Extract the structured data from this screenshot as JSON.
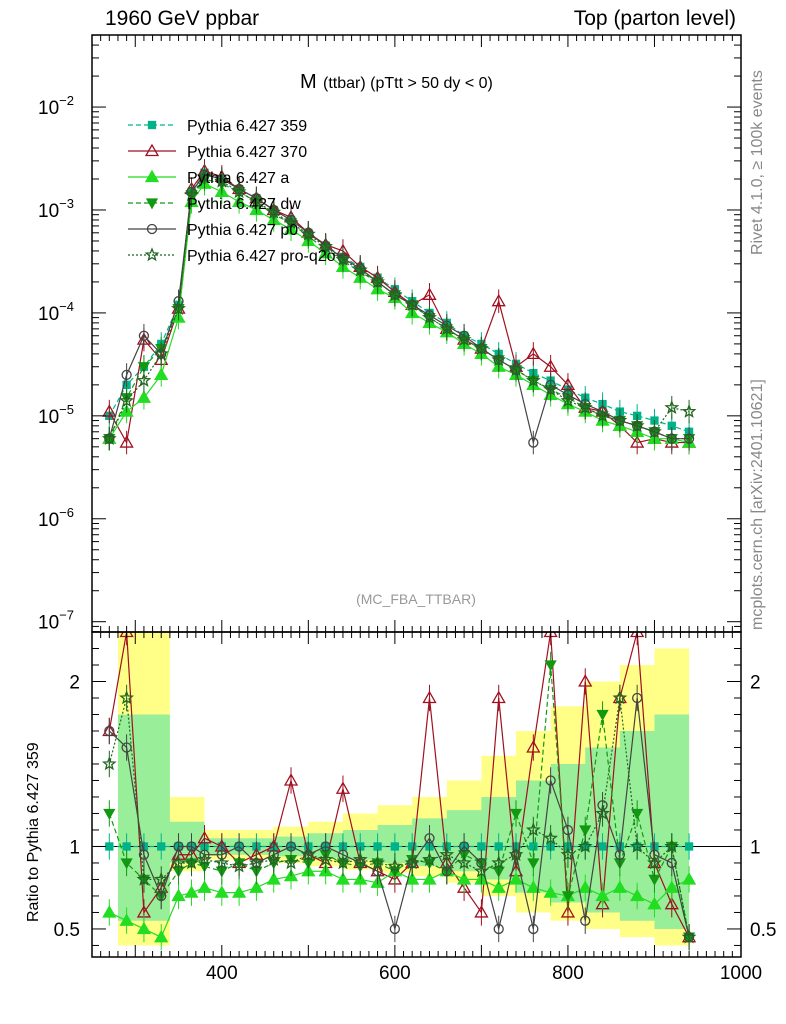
{
  "header": {
    "left": "1960 GeV ppbar",
    "right": "Top (parton level)"
  },
  "side_labels": {
    "rivet": "Rivet 4.1.0, ≥ 100k events",
    "mcplots": "mcplots.cern.ch [arXiv:2401.10621]"
  },
  "chart_data": {
    "type": "line",
    "title_main": "M",
    "title_sub": "(ttbar) (pTtt > 50 dy < 0)",
    "analysis_label": "(MC_FBA_TTBAR)",
    "ylabel_ratio": "Ratio to Pythia 6.427 359",
    "xlim": [
      250,
      1000
    ],
    "ylim_main_log": [
      -7.1,
      -1.3
    ],
    "ylim_ratio": [
      0.33,
      2.3
    ],
    "x_ticks": [
      {
        "v": 400,
        "label": "400"
      },
      {
        "v": 600,
        "label": "600"
      },
      {
        "v": 800,
        "label": "800"
      },
      {
        "v": 1000,
        "label": "1000"
      }
    ],
    "y_ticks_main": [
      {
        "e": -2,
        "label": "10",
        "sup": "−2"
      },
      {
        "e": -3,
        "label": "10",
        "sup": "−3"
      },
      {
        "e": -4,
        "label": "10",
        "sup": "−4"
      },
      {
        "e": -5,
        "label": "10",
        "sup": "−5"
      },
      {
        "e": -6,
        "label": "10",
        "sup": "−6"
      },
      {
        "e": -7,
        "label": "10",
        "sup": "−7"
      }
    ],
    "y_ticks_ratio": [
      {
        "v": 0.5,
        "label": "0.5"
      },
      {
        "v": 1,
        "label": "1"
      },
      {
        "v": 2,
        "label": "2"
      }
    ],
    "reference_band": {
      "x": [
        280,
        340,
        380,
        420,
        460,
        500,
        540,
        580,
        620,
        660,
        700,
        740,
        780,
        820,
        860,
        900,
        940
      ],
      "yellow_lo": [
        0.4,
        0.85,
        0.92,
        0.92,
        0.9,
        0.88,
        0.86,
        0.84,
        0.82,
        0.78,
        0.7,
        0.6,
        0.55,
        0.5,
        0.45,
        0.4,
        0.35
      ],
      "yellow_hi": [
        2.3,
        1.3,
        1.1,
        1.1,
        1.12,
        1.15,
        1.2,
        1.25,
        1.3,
        1.4,
        1.55,
        1.7,
        1.85,
        2.0,
        2.1,
        2.2,
        2.3
      ],
      "green_lo": [
        0.55,
        0.9,
        0.95,
        0.95,
        0.94,
        0.93,
        0.92,
        0.9,
        0.88,
        0.85,
        0.8,
        0.72,
        0.66,
        0.6,
        0.55,
        0.5,
        0.45
      ],
      "green_hi": [
        1.8,
        1.15,
        1.05,
        1.05,
        1.06,
        1.08,
        1.1,
        1.13,
        1.17,
        1.22,
        1.3,
        1.4,
        1.5,
        1.6,
        1.7,
        1.8,
        1.9
      ]
    },
    "series": [
      {
        "name": "Pythia 6.427 359",
        "color": "#00b38a",
        "marker": "square",
        "dash": "5,3",
        "filled": true,
        "x": [
          270,
          290,
          310,
          330,
          350,
          365,
          380,
          400,
          420,
          440,
          460,
          480,
          500,
          520,
          540,
          560,
          580,
          600,
          620,
          640,
          660,
          680,
          700,
          720,
          740,
          760,
          780,
          800,
          820,
          840,
          860,
          880,
          900,
          920,
          940
        ],
        "y": [
          1e-05,
          2e-05,
          3e-05,
          5e-05,
          0.00012,
          0.0015,
          0.0023,
          0.002,
          0.0016,
          0.0013,
          0.001,
          0.0008,
          0.0006,
          0.00045,
          0.00035,
          0.00028,
          0.00022,
          0.00017,
          0.00013,
          0.0001,
          8e-05,
          6e-05,
          5e-05,
          4e-05,
          3.2e-05,
          2.6e-05,
          2.2e-05,
          1.8e-05,
          1.5e-05,
          1.3e-05,
          1.1e-05,
          1e-05,
          9e-06,
          8e-06,
          7e-06
        ],
        "ratio": [
          1.0,
          1.0,
          1.0,
          1.0,
          1.0,
          1.0,
          1.0,
          1.0,
          1.0,
          1.0,
          1.0,
          1.0,
          1.0,
          1.0,
          1.0,
          1.0,
          1.0,
          1.0,
          1.0,
          1.0,
          1.0,
          1.0,
          1.0,
          1.0,
          1.0,
          1.0,
          1.0,
          1.0,
          1.0,
          1.0,
          1.0,
          1.0,
          1.0,
          1.0,
          1.0
        ]
      },
      {
        "name": "Pythia 6.427 370",
        "color": "#a01020",
        "marker": "triangle",
        "dash": "",
        "filled": false,
        "x": [
          270,
          290,
          310,
          330,
          350,
          365,
          380,
          400,
          420,
          440,
          460,
          480,
          500,
          520,
          540,
          560,
          580,
          600,
          620,
          640,
          660,
          680,
          700,
          720,
          740,
          760,
          780,
          800,
          820,
          840,
          860,
          880,
          900,
          920,
          940
        ],
        "y": [
          1.1e-05,
          5.5e-06,
          5.5e-05,
          3.5e-05,
          0.00011,
          0.0016,
          0.0024,
          0.0021,
          0.0016,
          0.0013,
          0.001,
          0.00085,
          0.0006,
          0.00046,
          0.0004,
          0.00028,
          0.00022,
          0.00016,
          0.00012,
          0.00015,
          7e-05,
          5.5e-05,
          4.5e-05,
          0.00013,
          3e-05,
          4e-05,
          3e-05,
          2e-05,
          1.2e-05,
          1.1e-05,
          8e-06,
          5.5e-06,
          6e-06,
          5.5e-06,
          5.5e-06
        ],
        "ratio": [
          1.7,
          2.3,
          0.6,
          0.75,
          0.95,
          0.95,
          1.05,
          1.0,
          0.9,
          0.95,
          1.0,
          1.4,
          0.95,
          0.9,
          1.35,
          0.9,
          0.85,
          0.8,
          0.9,
          1.9,
          0.9,
          0.75,
          0.6,
          1.9,
          0.85,
          1.6,
          2.3,
          0.6,
          2.0,
          0.65,
          1.9,
          2.3,
          0.9,
          0.65,
          0.45
        ]
      },
      {
        "name": "Pythia 6.427 a",
        "color": "#22dd22",
        "marker": "triangle",
        "dash": "",
        "filled": true,
        "x": [
          270,
          290,
          310,
          330,
          350,
          365,
          380,
          400,
          420,
          440,
          460,
          480,
          500,
          520,
          540,
          560,
          580,
          600,
          620,
          640,
          660,
          680,
          700,
          720,
          740,
          760,
          780,
          800,
          820,
          840,
          860,
          880,
          900,
          920,
          940
        ],
        "y": [
          6e-06,
          1.1e-05,
          1.5e-05,
          2.5e-05,
          9e-05,
          0.0012,
          0.0018,
          0.0015,
          0.0012,
          0.001,
          0.0008,
          0.00065,
          0.0005,
          0.00038,
          0.00028,
          0.00022,
          0.00017,
          0.00014,
          0.0001,
          8e-05,
          6.5e-05,
          5e-05,
          4e-05,
          3e-05,
          2.5e-05,
          2e-05,
          1.6e-05,
          1.3e-05,
          1.1e-05,
          9e-06,
          8e-06,
          7e-06,
          6e-06,
          6e-06,
          5.5e-06
        ],
        "ratio": [
          0.6,
          0.55,
          0.5,
          0.45,
          0.7,
          0.72,
          0.75,
          0.72,
          0.72,
          0.75,
          0.8,
          0.82,
          0.85,
          0.85,
          0.8,
          0.8,
          0.78,
          0.85,
          0.8,
          0.8,
          0.85,
          0.8,
          0.8,
          0.75,
          0.8,
          0.75,
          0.72,
          0.7,
          0.75,
          0.7,
          0.75,
          0.7,
          0.65,
          0.75,
          0.8
        ]
      },
      {
        "name": "Pythia 6.427 dw",
        "color": "#119911",
        "marker": "triangle-down",
        "dash": "5,3",
        "filled": true,
        "x": [
          270,
          290,
          310,
          330,
          350,
          365,
          380,
          400,
          420,
          440,
          460,
          480,
          500,
          520,
          540,
          560,
          580,
          600,
          620,
          640,
          660,
          680,
          700,
          720,
          740,
          760,
          780,
          800,
          820,
          840,
          860,
          880,
          900,
          920,
          940
        ],
        "y": [
          6e-06,
          1.5e-05,
          3e-05,
          4.5e-05,
          0.00011,
          0.0014,
          0.002,
          0.0018,
          0.0015,
          0.0012,
          0.0009,
          0.00075,
          0.00055,
          0.00042,
          0.00032,
          0.00025,
          0.0002,
          0.00015,
          0.00012,
          9e-05,
          7e-05,
          5.5e-05,
          4.5e-05,
          3.5e-05,
          2.8e-05,
          2.2e-05,
          1.8e-05,
          1.5e-05,
          1.2e-05,
          1e-05,
          9e-06,
          8e-06,
          7e-06,
          6e-06,
          6e-06
        ],
        "ratio": [
          1.2,
          0.9,
          0.8,
          0.7,
          0.85,
          0.9,
          0.88,
          0.85,
          0.9,
          0.85,
          0.9,
          0.92,
          0.9,
          0.95,
          0.9,
          0.88,
          0.9,
          0.85,
          0.92,
          0.9,
          0.85,
          0.95,
          0.9,
          0.85,
          1.2,
          0.9,
          2.1,
          0.7,
          1.1,
          1.8,
          0.9,
          1.2,
          0.8,
          1.0,
          0.45
        ]
      },
      {
        "name": "Pythia 6.427 p0",
        "color": "#444444",
        "marker": "circle",
        "dash": "",
        "filled": false,
        "x": [
          270,
          290,
          310,
          330,
          350,
          365,
          380,
          400,
          420,
          440,
          460,
          480,
          500,
          520,
          540,
          560,
          580,
          600,
          620,
          640,
          660,
          680,
          700,
          720,
          740,
          760,
          780,
          800,
          820,
          840,
          860,
          880,
          900,
          920,
          940
        ],
        "y": [
          6e-06,
          2.5e-05,
          6e-05,
          4e-05,
          0.00013,
          0.0015,
          0.0022,
          0.002,
          0.0016,
          0.0013,
          0.001,
          0.0008,
          0.0006,
          0.00045,
          0.00034,
          0.00027,
          0.0002,
          0.00015,
          0.00012,
          9.5e-05,
          7.5e-05,
          6e-05,
          4.5e-05,
          3.5e-05,
          2.8e-05,
          5.5e-06,
          2e-05,
          1.6e-05,
          1.3e-05,
          1.1e-05,
          9e-06,
          8e-06,
          7e-06,
          6e-06,
          6e-06
        ],
        "ratio": [
          1.7,
          1.6,
          0.95,
          0.7,
          1.0,
          1.0,
          0.95,
          0.95,
          1.0,
          0.9,
          0.95,
          1.0,
          0.95,
          1.0,
          0.95,
          0.9,
          0.85,
          0.5,
          0.9,
          1.05,
          0.85,
          1.0,
          0.9,
          0.5,
          0.95,
          0.5,
          1.4,
          1.1,
          0.55,
          1.25,
          0.95,
          1.9,
          0.95,
          0.9,
          0.45
        ]
      },
      {
        "name": "Pythia 6.427 pro-q2o",
        "color": "#226622",
        "marker": "star",
        "dash": "2,2",
        "filled": false,
        "x": [
          270,
          290,
          310,
          330,
          350,
          365,
          380,
          400,
          420,
          440,
          460,
          480,
          500,
          520,
          540,
          560,
          580,
          600,
          620,
          640,
          660,
          680,
          700,
          720,
          740,
          760,
          780,
          800,
          820,
          840,
          860,
          880,
          900,
          920,
          940
        ],
        "y": [
          6e-06,
          1.4e-05,
          2.2e-05,
          4e-05,
          0.00011,
          0.0014,
          0.0021,
          0.0019,
          0.0015,
          0.0012,
          0.00095,
          0.00075,
          0.00058,
          0.00044,
          0.00033,
          0.00026,
          0.0002,
          0.00015,
          0.00012,
          9e-05,
          7e-05,
          5.5e-05,
          4.5e-05,
          3.5e-05,
          2.8e-05,
          2.2e-05,
          1.8e-05,
          1.4e-05,
          1.2e-05,
          1e-05,
          9e-06,
          8e-06,
          7e-06,
          1.2e-05,
          1.1e-05
        ],
        "ratio": [
          1.5,
          1.9,
          0.8,
          0.8,
          0.9,
          0.9,
          0.92,
          0.9,
          0.88,
          0.9,
          0.92,
          0.9,
          0.95,
          0.92,
          0.9,
          0.92,
          0.9,
          0.88,
          0.9,
          0.92,
          0.95,
          0.9,
          0.85,
          0.9,
          0.95,
          1.1,
          1.05,
          0.95,
          1.0,
          1.2,
          1.9,
          1.0,
          0.9,
          1.0,
          0.45
        ]
      }
    ]
  }
}
